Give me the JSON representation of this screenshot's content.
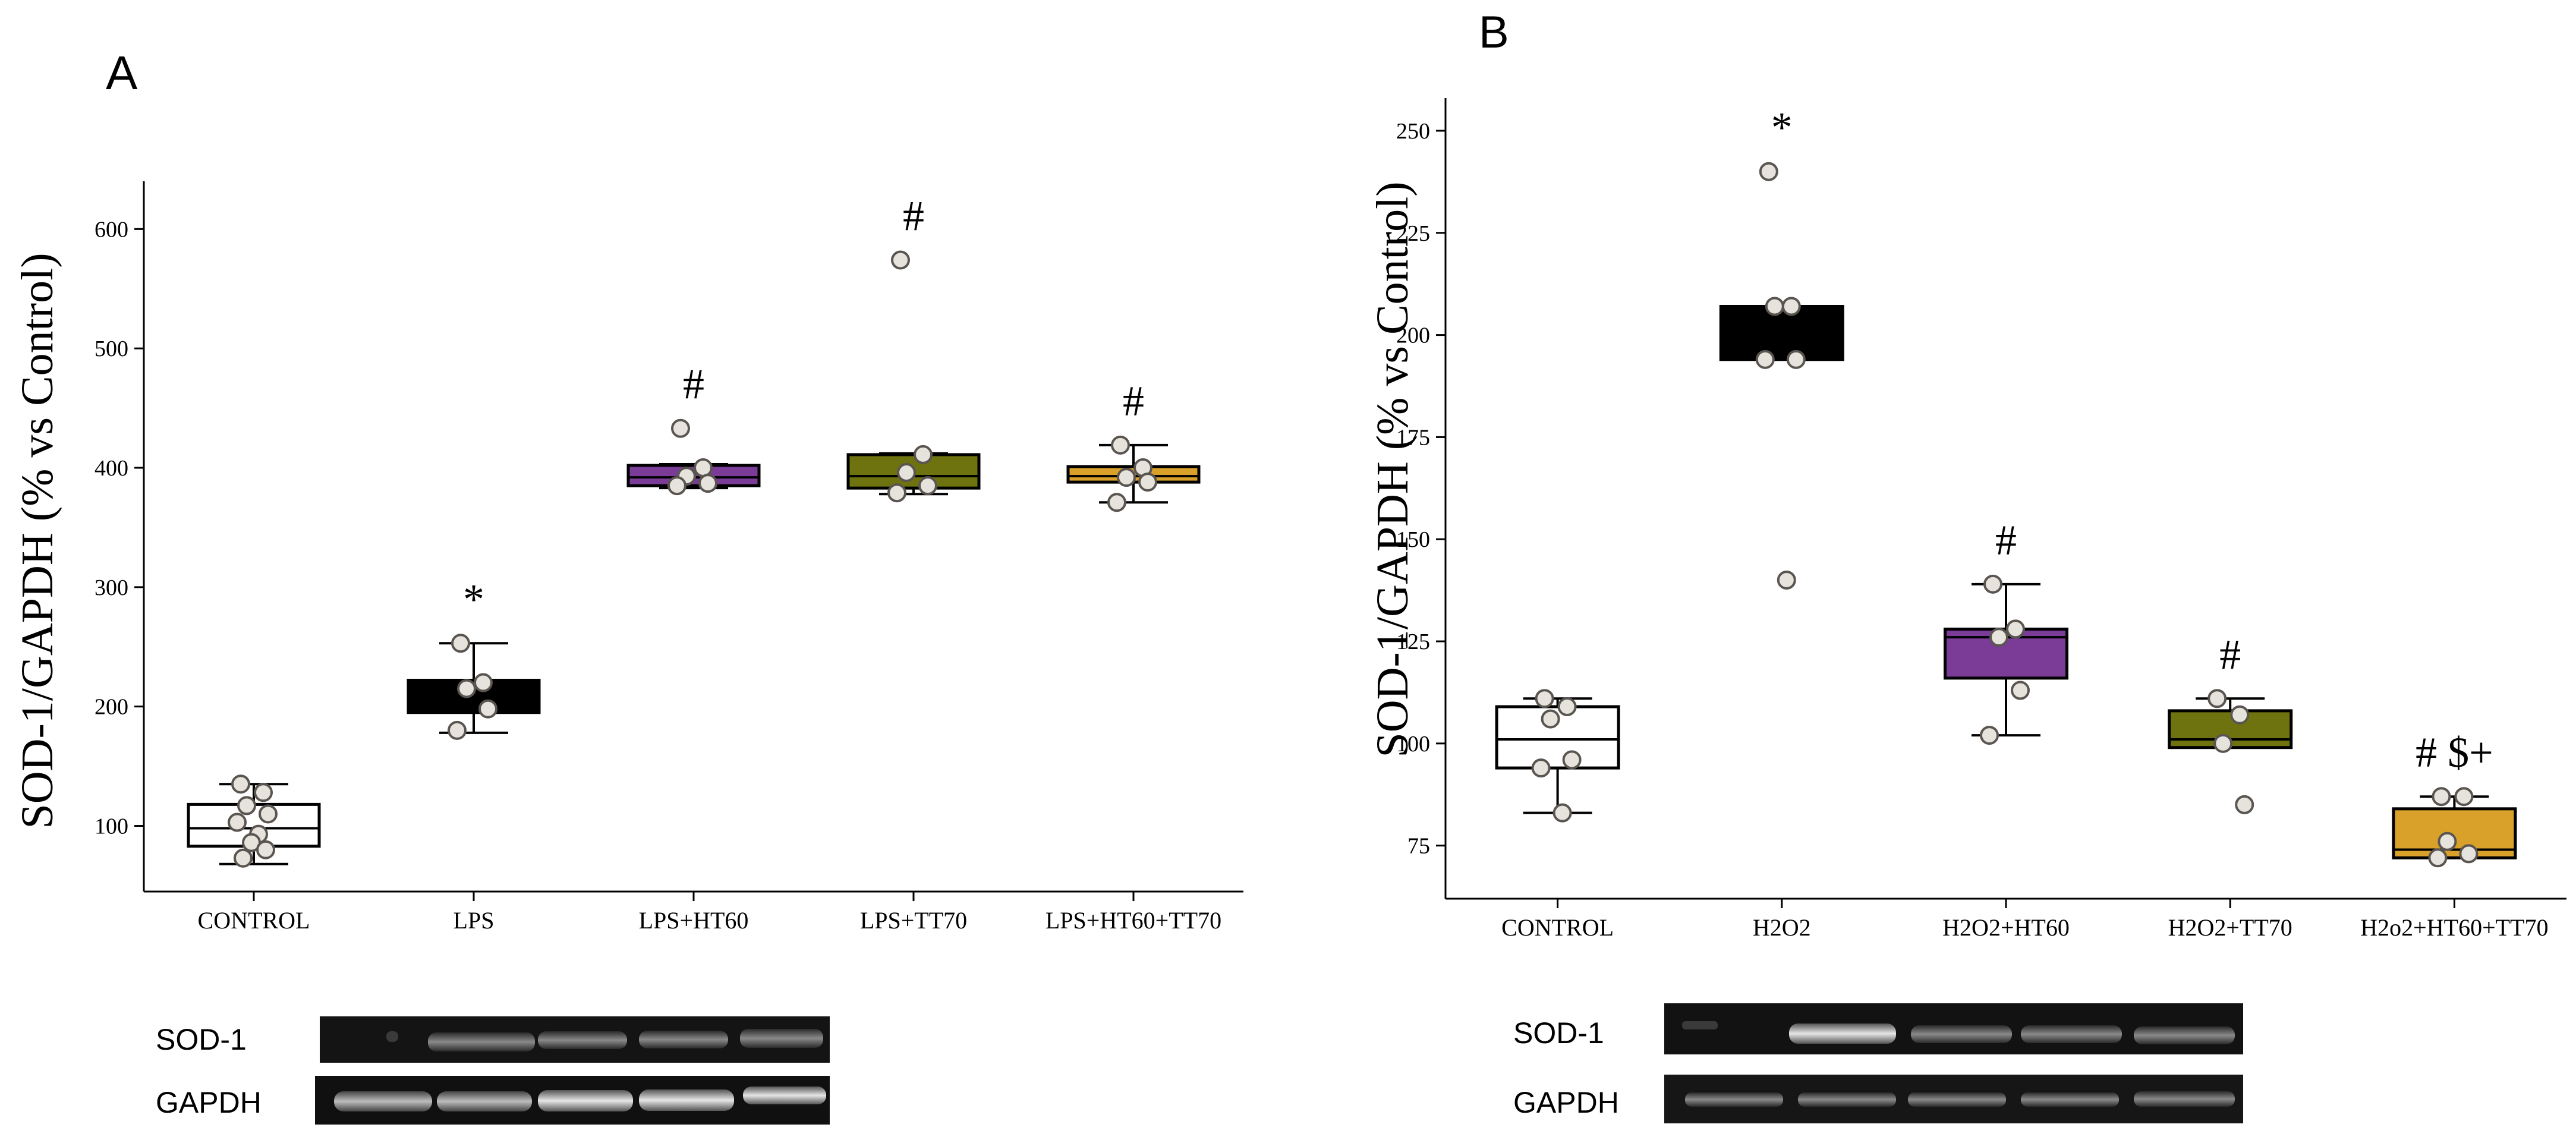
{
  "chart_data": [
    {
      "type": "box",
      "panel_label": "A",
      "ylabel": "SOD-1/GAPDH (% vs Control)",
      "xlabel": "",
      "ylim": [
        45,
        640
      ],
      "yticks": [
        100,
        200,
        300,
        400,
        500,
        600
      ],
      "categories": [
        "CONTROL",
        "LPS",
        "LPS+HT60",
        "LPS+TT70",
        "LPS+HT60+TT70"
      ],
      "colors": [
        "#ffffff",
        "#000000",
        "#7a3c96",
        "#6e7310",
        "#d9a02a"
      ],
      "boxes": [
        {
          "q1": 83,
          "median": 98,
          "q3": 118,
          "whisker_low": 68,
          "whisker_high": 135
        },
        {
          "q1": 195,
          "median": 210,
          "q3": 222,
          "whisker_low": 178,
          "whisker_high": 253
        },
        {
          "q1": 385,
          "median": 392,
          "q3": 402,
          "whisker_low": 383,
          "whisker_high": 403
        },
        {
          "q1": 383,
          "median": 393,
          "q3": 411,
          "whisker_low": 378,
          "whisker_high": 412
        },
        {
          "q1": 388,
          "median": 393,
          "q3": 401,
          "whisker_low": 371,
          "whisker_high": 419
        }
      ],
      "points": [
        [
          135,
          128,
          117,
          110,
          103,
          93,
          86,
          80,
          73
        ],
        [
          253,
          220,
          215,
          198,
          180
        ],
        [
          433,
          400,
          393,
          387,
          385
        ],
        [
          574,
          411,
          396,
          385,
          379
        ],
        [
          419,
          400,
          392,
          388,
          371
        ]
      ],
      "significance": [
        "",
        "*",
        "#",
        "#",
        "#"
      ],
      "blot": {
        "label1": "SOD-1",
        "label2": "GAPDH"
      }
    },
    {
      "type": "box",
      "panel_label": "B",
      "ylabel": "SOD-1/GAPDH (% vs Control)",
      "xlabel": "",
      "ylim": [
        62,
        258
      ],
      "yticks": [
        75,
        100,
        125,
        150,
        175,
        200,
        225,
        250
      ],
      "categories": [
        "CONTROL",
        "H2O2",
        "H2O2+HT60",
        "H2O2+TT70",
        "H2o2+HT60+TT70"
      ],
      "colors": [
        "#ffffff",
        "#000000",
        "#7a3c96",
        "#6e7310",
        "#d9a02a"
      ],
      "boxes": [
        {
          "q1": 94,
          "median": 101,
          "q3": 109,
          "whisker_low": 83,
          "whisker_high": 111
        },
        {
          "q1": 194,
          "median": 200,
          "q3": 207,
          "whisker_low": 194,
          "whisker_high": 207
        },
        {
          "q1": 116,
          "median": 126,
          "q3": 128,
          "whisker_low": 102,
          "whisker_high": 139
        },
        {
          "q1": 99,
          "median": 101,
          "q3": 108,
          "whisker_low": 99,
          "whisker_high": 111
        },
        {
          "q1": 72,
          "median": 74,
          "q3": 84,
          "whisker_low": 72,
          "whisker_high": 87
        }
      ],
      "points": [
        [
          111,
          109,
          106,
          96,
          94,
          83
        ],
        [
          240,
          207,
          207,
          194,
          194,
          140
        ],
        [
          139,
          128,
          126,
          113,
          102
        ],
        [
          111,
          107,
          100,
          85
        ],
        [
          87,
          87,
          76,
          73,
          72
        ]
      ],
      "significance": [
        "",
        "*",
        "#",
        "#",
        "# $+"
      ],
      "blot": {
        "label1": "SOD-1",
        "label2": "GAPDH"
      }
    }
  ]
}
